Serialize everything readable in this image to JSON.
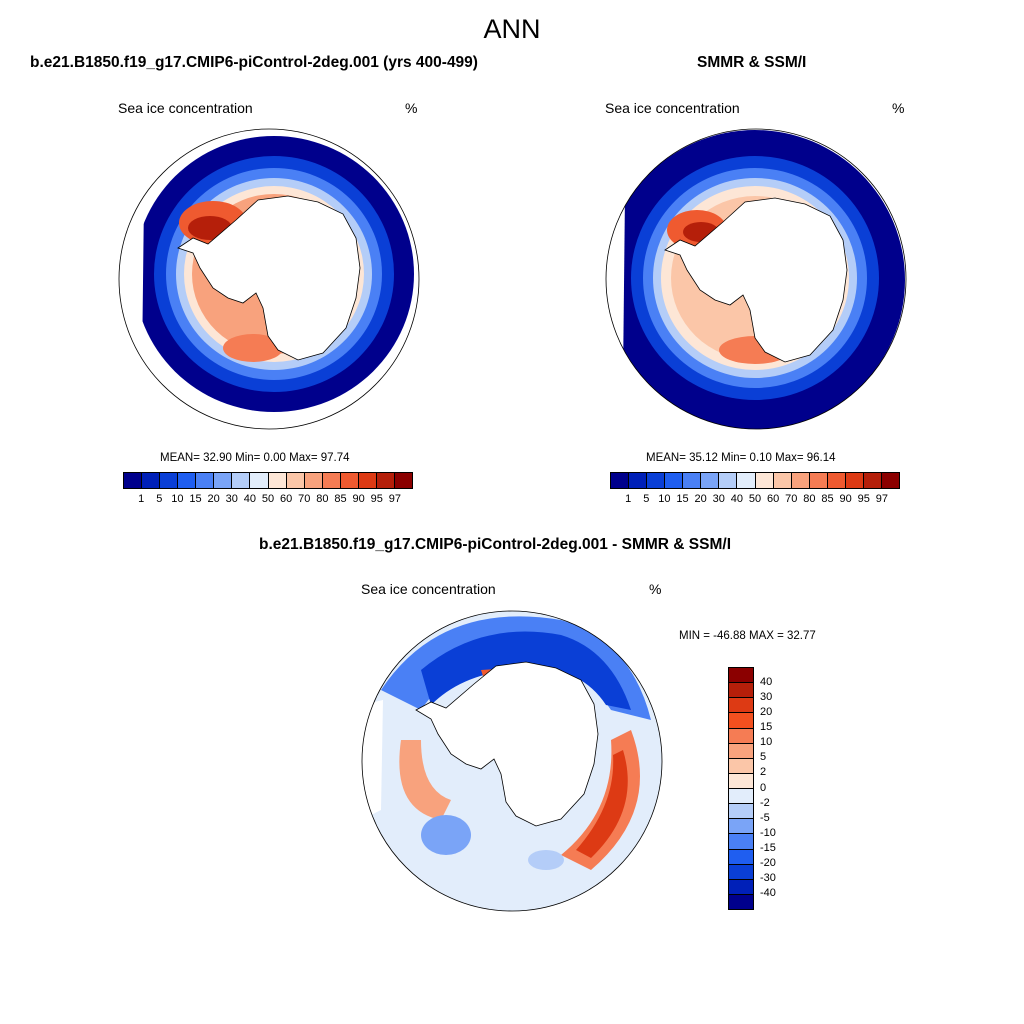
{
  "main_title": "ANN",
  "panels": [
    {
      "title": "b.e21.B1850.f19_g17.CMIP6-piControl-2deg.001 (yrs 400-499)",
      "var_label": "Sea ice concentration",
      "unit": "%",
      "stats": "MEAN=  32.90  Min=   0.00  Max=  97.74"
    },
    {
      "title": "SMMR & SSM/I",
      "var_label": "Sea ice concentration",
      "unit": "%",
      "stats": "MEAN=  35.12  Min=   0.10  Max=  96.14"
    },
    {
      "title": "b.e21.B1850.f19_g17.CMIP6-piControl-2deg.001 - SMMR & SSM/I",
      "var_label": "Sea ice concentration",
      "unit": "%",
      "stats": "MIN = -46.88 MAX =  32.77"
    }
  ],
  "abs_colorbar": {
    "labels": [
      "1",
      "5",
      "10",
      "15",
      "20",
      "30",
      "40",
      "50",
      "60",
      "70",
      "80",
      "85",
      "90",
      "95",
      "97"
    ],
    "colors": [
      "#00008c",
      "#0020b8",
      "#0a3fd6",
      "#1f5ef0",
      "#4a80f5",
      "#7aa4f7",
      "#b4cdf8",
      "#e2edfb",
      "#fde6d6",
      "#fbc6a8",
      "#f8a27d",
      "#f57c54",
      "#ef5a30",
      "#dd3a14",
      "#b51f0a",
      "#8b0000"
    ]
  },
  "diff_colorbar": {
    "labels": [
      "40",
      "30",
      "20",
      "15",
      "10",
      "5",
      "2",
      "0",
      "-2",
      "-5",
      "-10",
      "-15",
      "-20",
      "-30",
      "-40"
    ],
    "colors": [
      "#8b0000",
      "#b51f0a",
      "#dd3a14",
      "#f3501f",
      "#f57c54",
      "#f8a27d",
      "#fbc6a8",
      "#fde6d6",
      "#e2edfb",
      "#b4cdf8",
      "#7aa4f7",
      "#4a80f5",
      "#1f5ef0",
      "#0a3fd6",
      "#0020b8",
      "#00008c"
    ]
  }
}
